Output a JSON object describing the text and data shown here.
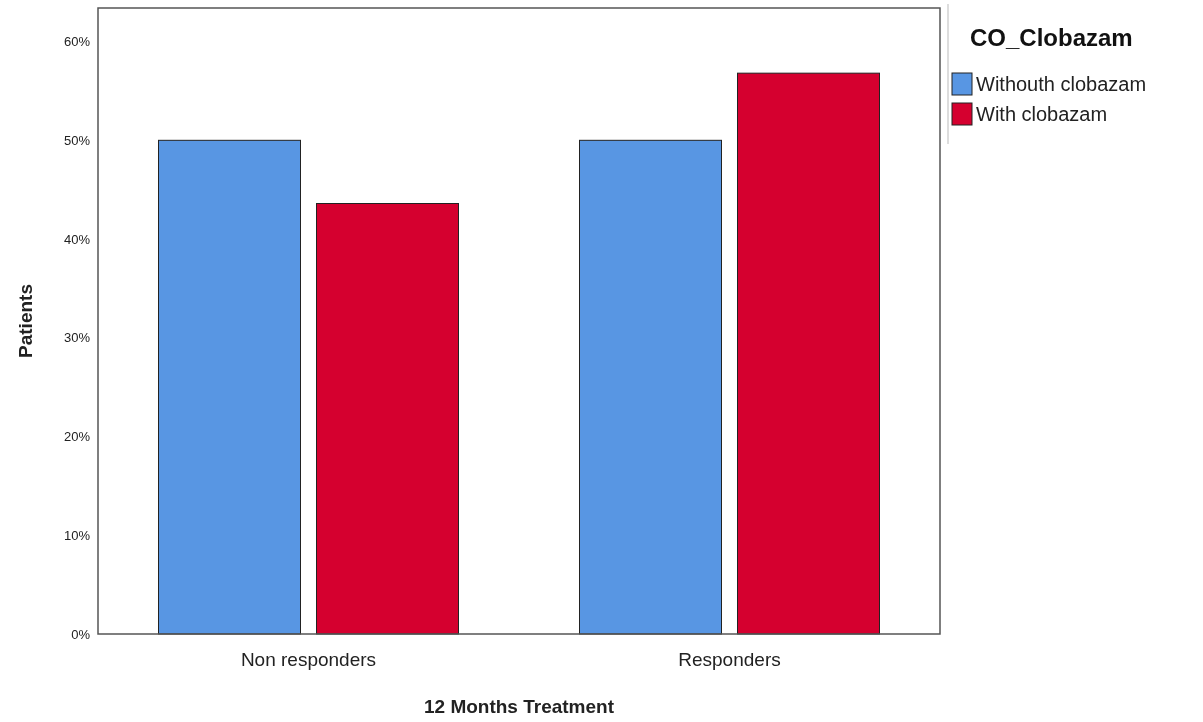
{
  "chart_data": {
    "type": "bar",
    "xlabel": "12 Months Treatment",
    "ylabel": "Patients",
    "legend_title": "CO_Clobazam",
    "legend": "top right",
    "categories": [
      "Non responders",
      "Responders"
    ],
    "series": [
      {
        "name": "Withouth clobazam",
        "color": "#5896e3",
        "values": [
          50,
          50
        ]
      },
      {
        "name": "With clobazam",
        "color": "#d5002f",
        "values": [
          43.6,
          56.8
        ]
      }
    ],
    "ylim": [
      0,
      63.4
    ],
    "yticks": [
      {
        "value": 0,
        "label": "0%"
      },
      {
        "value": 10,
        "label": "10%"
      },
      {
        "value": 20,
        "label": "20%"
      },
      {
        "value": 30,
        "label": "30%"
      },
      {
        "value": 40,
        "label": "40%"
      },
      {
        "value": 50,
        "label": "50%"
      },
      {
        "value": 60,
        "label": "60%"
      }
    ]
  }
}
